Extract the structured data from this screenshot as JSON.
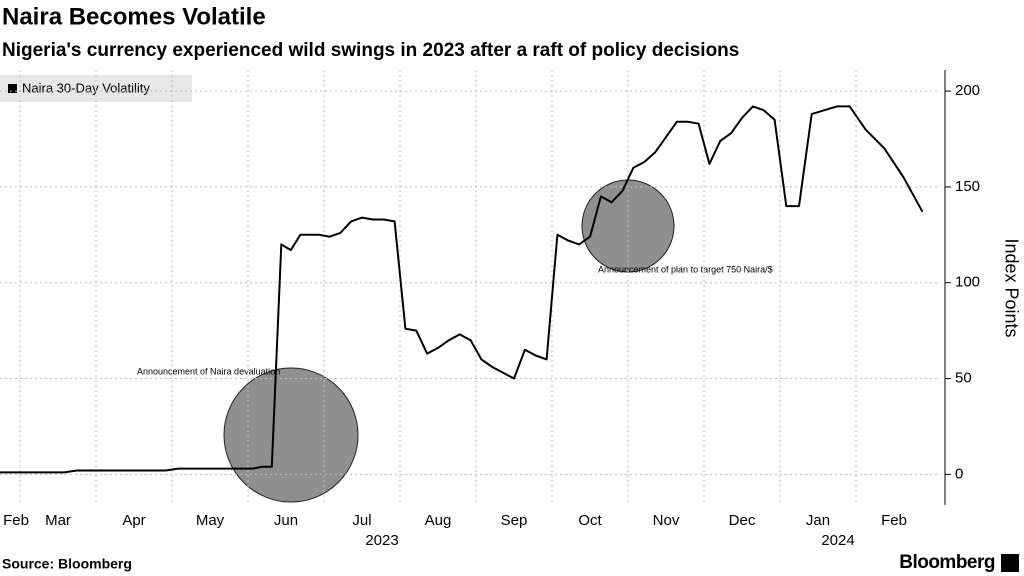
{
  "chart_data": {
    "type": "line",
    "title": "Naira Becomes Volatile",
    "subtitle": "Nigeria's currency experienced wild swings in 2023 after a raft of policy decisions",
    "y_label": "Index Points",
    "source": "Source: Bloomberg",
    "brand": "Bloomberg",
    "legend_position": "top-left",
    "grid": true,
    "x": [
      "2023-02",
      "2023-02",
      "2023-02",
      "2023-03",
      "2023-03",
      "2023-03",
      "2023-03",
      "2023-03",
      "2023-03",
      "2023-04",
      "2023-04",
      "2023-04",
      "2023-04",
      "2023-04",
      "2023-04",
      "2023-05",
      "2023-05",
      "2023-05",
      "2023-05",
      "2023-05",
      "2023-05",
      "2023-06",
      "2023-06",
      "2023-06",
      "2023-06",
      "2023-06",
      "2023-06",
      "2023-06",
      "2023-06",
      "2023-07",
      "2023-07",
      "2023-07",
      "2023-07",
      "2023-07",
      "2023-07",
      "2023-07",
      "2023-08",
      "2023-08",
      "2023-08",
      "2023-08",
      "2023-08",
      "2023-08",
      "2023-08",
      "2023-09",
      "2023-09",
      "2023-09",
      "2023-09",
      "2023-09",
      "2023-09",
      "2023-09",
      "2023-10",
      "2023-10",
      "2023-10",
      "2023-10",
      "2023-10",
      "2023-10",
      "2023-10",
      "2023-11",
      "2023-11",
      "2023-11",
      "2023-11",
      "2023-11",
      "2023-11",
      "2023-11",
      "2023-12",
      "2023-12",
      "2023-12",
      "2023-12",
      "2023-12",
      "2023-12",
      "2023-12",
      "2024-01",
      "2024-01",
      "2024-01",
      "2024-01",
      "2024-01",
      "2024-01",
      "2024-02",
      "2024-02",
      "2024-02",
      "2024-02"
    ],
    "series": [
      {
        "name": "Naira 30-Day Volatility",
        "color": "#000000",
        "values": [
          1,
          1,
          1,
          1,
          1,
          1,
          1,
          2,
          2,
          2,
          2,
          2,
          2,
          2,
          2,
          3,
          3,
          3,
          3,
          3,
          3,
          3,
          4,
          4,
          120,
          117,
          125,
          125,
          125,
          124,
          126,
          132,
          134,
          133,
          133,
          132,
          76,
          75,
          63,
          66,
          70,
          73,
          70,
          60,
          56,
          53,
          50,
          65,
          62,
          60,
          125,
          122,
          120,
          124,
          145,
          142,
          148,
          160,
          163,
          168,
          176,
          184,
          184,
          183,
          162,
          174,
          178,
          186,
          192,
          190,
          185,
          140,
          140,
          188,
          190,
          192,
          192,
          180,
          170,
          155,
          137
        ]
      }
    ],
    "xticks": [
      {
        "value": "2023-02",
        "label": "Feb"
      },
      {
        "value": "2023-03",
        "label": "Mar"
      },
      {
        "value": "2023-04",
        "label": "Apr"
      },
      {
        "value": "2023-05",
        "label": "May"
      },
      {
        "value": "2023-06",
        "label": "Jun"
      },
      {
        "value": "2023-07",
        "label": "Jul"
      },
      {
        "value": "2023-08",
        "label": "Aug"
      },
      {
        "value": "2023-09",
        "label": "Sep"
      },
      {
        "value": "2023-10",
        "label": "Oct"
      },
      {
        "value": "2023-11",
        "label": "Nov"
      },
      {
        "value": "2023-12",
        "label": "Dec"
      },
      {
        "value": "2024-01",
        "label": "Jan"
      },
      {
        "value": "2024-02",
        "label": "Feb"
      }
    ],
    "x_years": [
      {
        "value": "2023-07",
        "label": "2023"
      },
      {
        "value": "2024-01",
        "label": "2024"
      }
    ],
    "ylim": [
      -16,
      211
    ],
    "yticks": [
      0,
      50,
      100,
      150,
      200
    ],
    "annotations": [
      "Announcement of Naira devaluation",
      "Announcement of plan to target 750 Naira/$"
    ]
  }
}
